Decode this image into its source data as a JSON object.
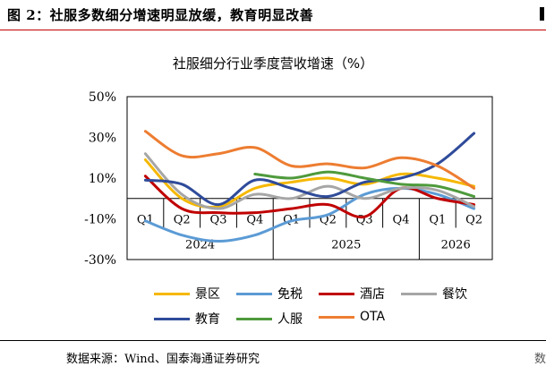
{
  "figure": {
    "title": "图 2：社服多数细分增速明显放缓，教育明显改善",
    "source": "数据来源：Wind、国泰海通证券研究",
    "right_edge_char": "数"
  },
  "chart_data": {
    "type": "line",
    "title": "社服细分行业季度营收增速（%）",
    "categories": [
      "Q1",
      "Q2",
      "Q3",
      "Q4",
      "Q1",
      "Q2",
      "Q3",
      "Q4",
      "Q1",
      "Q2"
    ],
    "year_groups": [
      {
        "label": "2024",
        "span": 4
      },
      {
        "label": "2025",
        "span": 4
      },
      {
        "label": "2026",
        "span": 2
      }
    ],
    "ylim": [
      -30,
      50
    ],
    "yticks": [
      -30,
      -10,
      10,
      30,
      50
    ],
    "ytick_labels": [
      "-30%",
      "-10%",
      "10%",
      "30%",
      "50%"
    ],
    "series": [
      {
        "name": "景区",
        "color": "#f5b800",
        "values": [
          19,
          0,
          -4,
          5,
          8,
          10,
          7,
          12,
          10,
          6
        ]
      },
      {
        "name": "免税",
        "color": "#5b9bd5",
        "values": [
          -11,
          -18,
          -21,
          -18,
          -11,
          -8,
          2,
          5,
          2,
          -5
        ]
      },
      {
        "name": "酒店",
        "color": "#c00000",
        "values": [
          11,
          -5,
          -7,
          -7,
          -5,
          -3,
          -9,
          5,
          0,
          -3
        ]
      },
      {
        "name": "餐饮",
        "color": "#a6a6a6",
        "values": [
          22,
          2,
          -5,
          2,
          0,
          6,
          0,
          5,
          4,
          -4
        ]
      },
      {
        "name": "教育",
        "color": "#2f4b9a",
        "values": [
          9,
          7,
          -3,
          9,
          5,
          1,
          8,
          10,
          17,
          32
        ]
      },
      {
        "name": "人服",
        "color": "#4e9a3c",
        "values": [
          null,
          null,
          null,
          12,
          10,
          13,
          10,
          7,
          6,
          1
        ]
      },
      {
        "name": "OTA",
        "color": "#ed7d31",
        "values": [
          33,
          21,
          22,
          25,
          16,
          17,
          15,
          20,
          16,
          5
        ]
      }
    ]
  }
}
